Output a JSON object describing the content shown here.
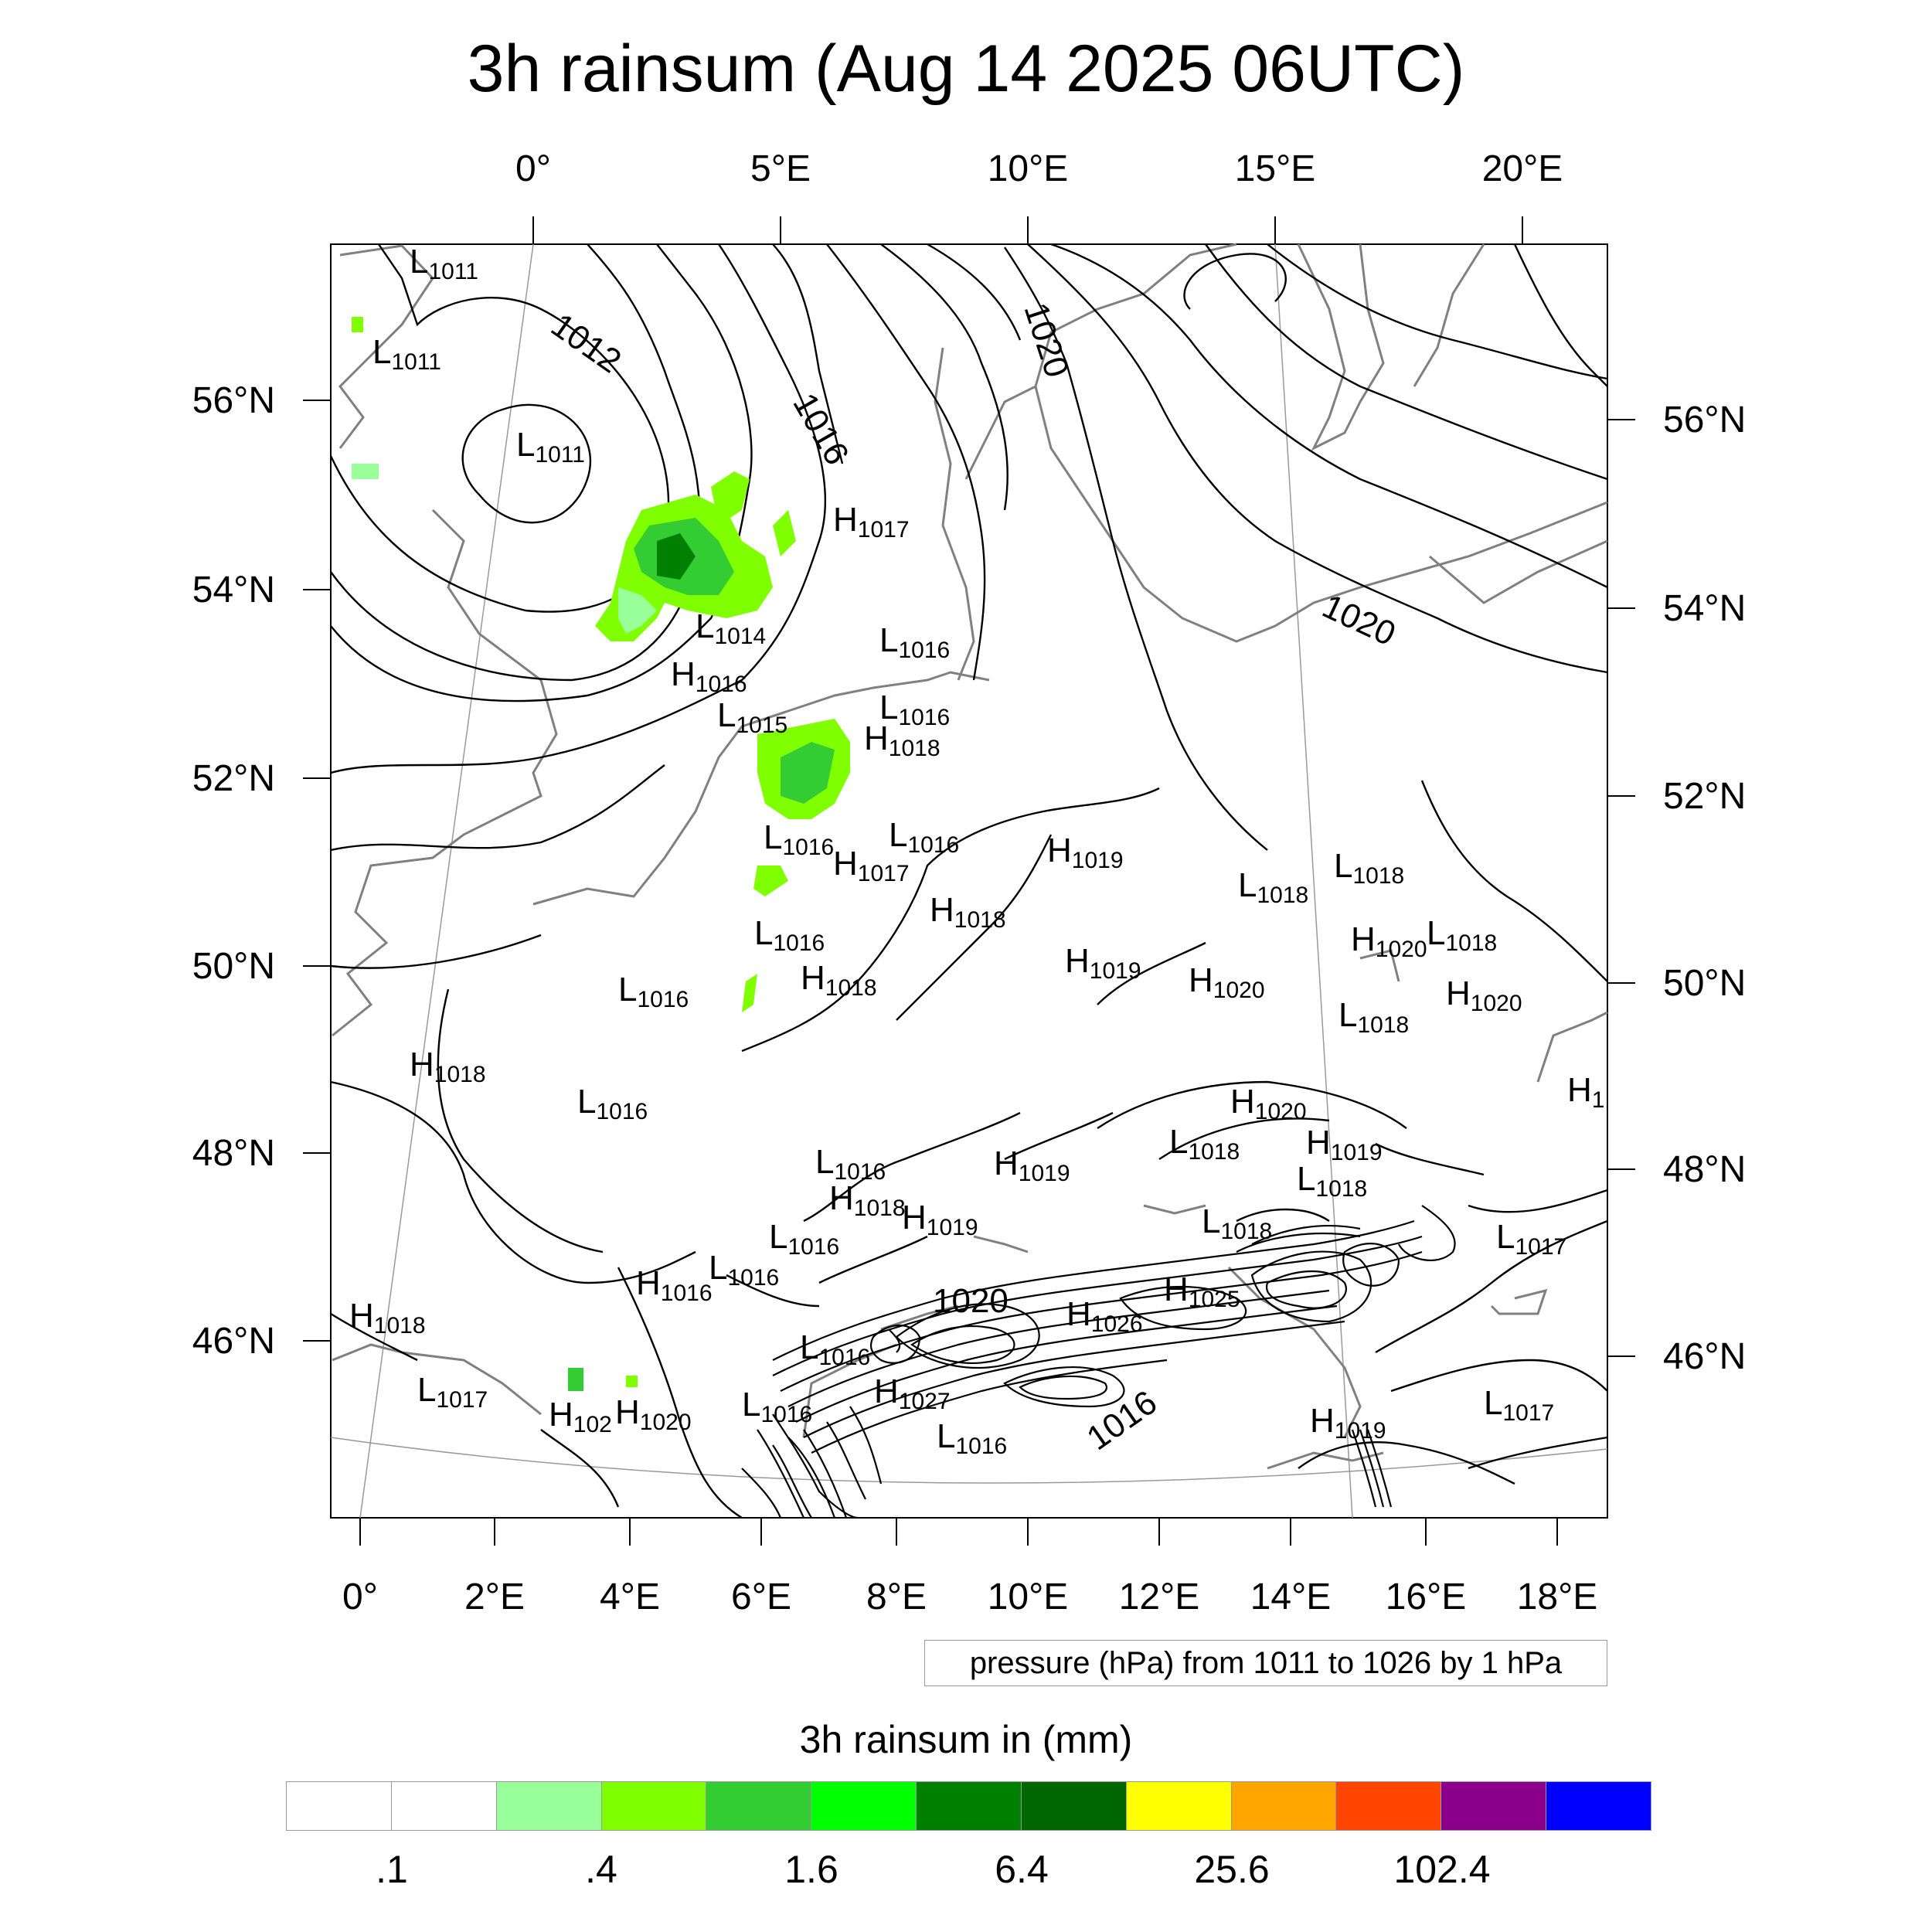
{
  "title": "3h rainsum (Aug 14 2025 06UTC)",
  "top_lon_labels": [
    "0°",
    "5°E",
    "10°E",
    "15°E",
    "20°E"
  ],
  "bottom_lon_labels": [
    "0°",
    "2°E",
    "4°E",
    "6°E",
    "8°E",
    "10°E",
    "12°E",
    "14°E",
    "16°E",
    "18°E"
  ],
  "left_lat_labels": [
    "56°N",
    "54°N",
    "52°N",
    "50°N",
    "48°N",
    "46°N"
  ],
  "right_lat_labels": [
    "56°N",
    "54°N",
    "52°N",
    "50°N",
    "48°N",
    "46°N"
  ],
  "contour_labels": [
    "1012",
    "1016",
    "1020",
    "1020",
    "1020",
    "1016"
  ],
  "pressure_centers": [
    {
      "type": "L",
      "value": "1011"
    },
    {
      "type": "L",
      "value": "1011"
    },
    {
      "type": "L",
      "value": "1011"
    },
    {
      "type": "H",
      "value": "1017"
    },
    {
      "type": "L",
      "value": "1014"
    },
    {
      "type": "L",
      "value": "1016"
    },
    {
      "type": "H",
      "value": "1016"
    },
    {
      "type": "L",
      "value": "1015"
    },
    {
      "type": "L",
      "value": "1016"
    },
    {
      "type": "H",
      "value": "1018"
    },
    {
      "type": "L",
      "value": "1016"
    },
    {
      "type": "L",
      "value": "1016"
    },
    {
      "type": "H",
      "value": "1017"
    },
    {
      "type": "H",
      "value": "1019"
    },
    {
      "type": "L",
      "value": "1018"
    },
    {
      "type": "L",
      "value": "1018"
    },
    {
      "type": "H",
      "value": "1018"
    },
    {
      "type": "L",
      "value": "1016"
    },
    {
      "type": "H",
      "value": "1020"
    },
    {
      "type": "L",
      "value": "1018"
    },
    {
      "type": "H",
      "value": "1019"
    },
    {
      "type": "H",
      "value": "1020"
    },
    {
      "type": "H",
      "value": "1020"
    },
    {
      "type": "L",
      "value": "1016"
    },
    {
      "type": "H",
      "value": "1018"
    },
    {
      "type": "L",
      "value": "1018"
    },
    {
      "type": "H",
      "value": "1018"
    },
    {
      "type": "H",
      "value": "1"
    },
    {
      "type": "L",
      "value": "1016"
    },
    {
      "type": "H",
      "value": "1020"
    },
    {
      "type": "L",
      "value": "1018"
    },
    {
      "type": "H",
      "value": "1019"
    },
    {
      "type": "L",
      "value": "1016"
    },
    {
      "type": "H",
      "value": "1019"
    },
    {
      "type": "L",
      "value": "1018"
    },
    {
      "type": "H",
      "value": "1018"
    },
    {
      "type": "H",
      "value": "1019"
    },
    {
      "type": "L",
      "value": "1016"
    },
    {
      "type": "L",
      "value": "1018"
    },
    {
      "type": "L",
      "value": "1016"
    },
    {
      "type": "L",
      "value": "1017"
    },
    {
      "type": "H",
      "value": "1016"
    },
    {
      "type": "H",
      "value": "1025"
    },
    {
      "type": "H",
      "value": "1026"
    },
    {
      "type": "H",
      "value": "1018"
    },
    {
      "type": "L",
      "value": "1016"
    },
    {
      "type": "L",
      "value": "1017"
    },
    {
      "type": "H",
      "value": "102"
    },
    {
      "type": "H",
      "value": "1020"
    },
    {
      "type": "L",
      "value": "1016"
    },
    {
      "type": "H",
      "value": "1027"
    },
    {
      "type": "L",
      "value": "1016"
    },
    {
      "type": "H",
      "value": "1019"
    },
    {
      "type": "L",
      "value": "1017"
    }
  ],
  "pressure_info": "pressure (hPa) from 1011 to 1026 by 1 hPa",
  "colorbar": {
    "title": "3h rainsum in (mm)",
    "colors": [
      "#ffffff",
      "#ffffff",
      "#99ff99",
      "#80ff00",
      "#33cc33",
      "#00ff00",
      "#008000",
      "#006600",
      "#ffff00",
      "#ffa500",
      "#ff4500",
      "#8b008b",
      "#0000ff"
    ],
    "labels": [
      ".1",
      ".4",
      "1.6",
      "6.4",
      "25.6",
      "102.4"
    ]
  },
  "colors": {
    "contour": "#000000",
    "coast": "#808080",
    "frame": "#000000"
  }
}
